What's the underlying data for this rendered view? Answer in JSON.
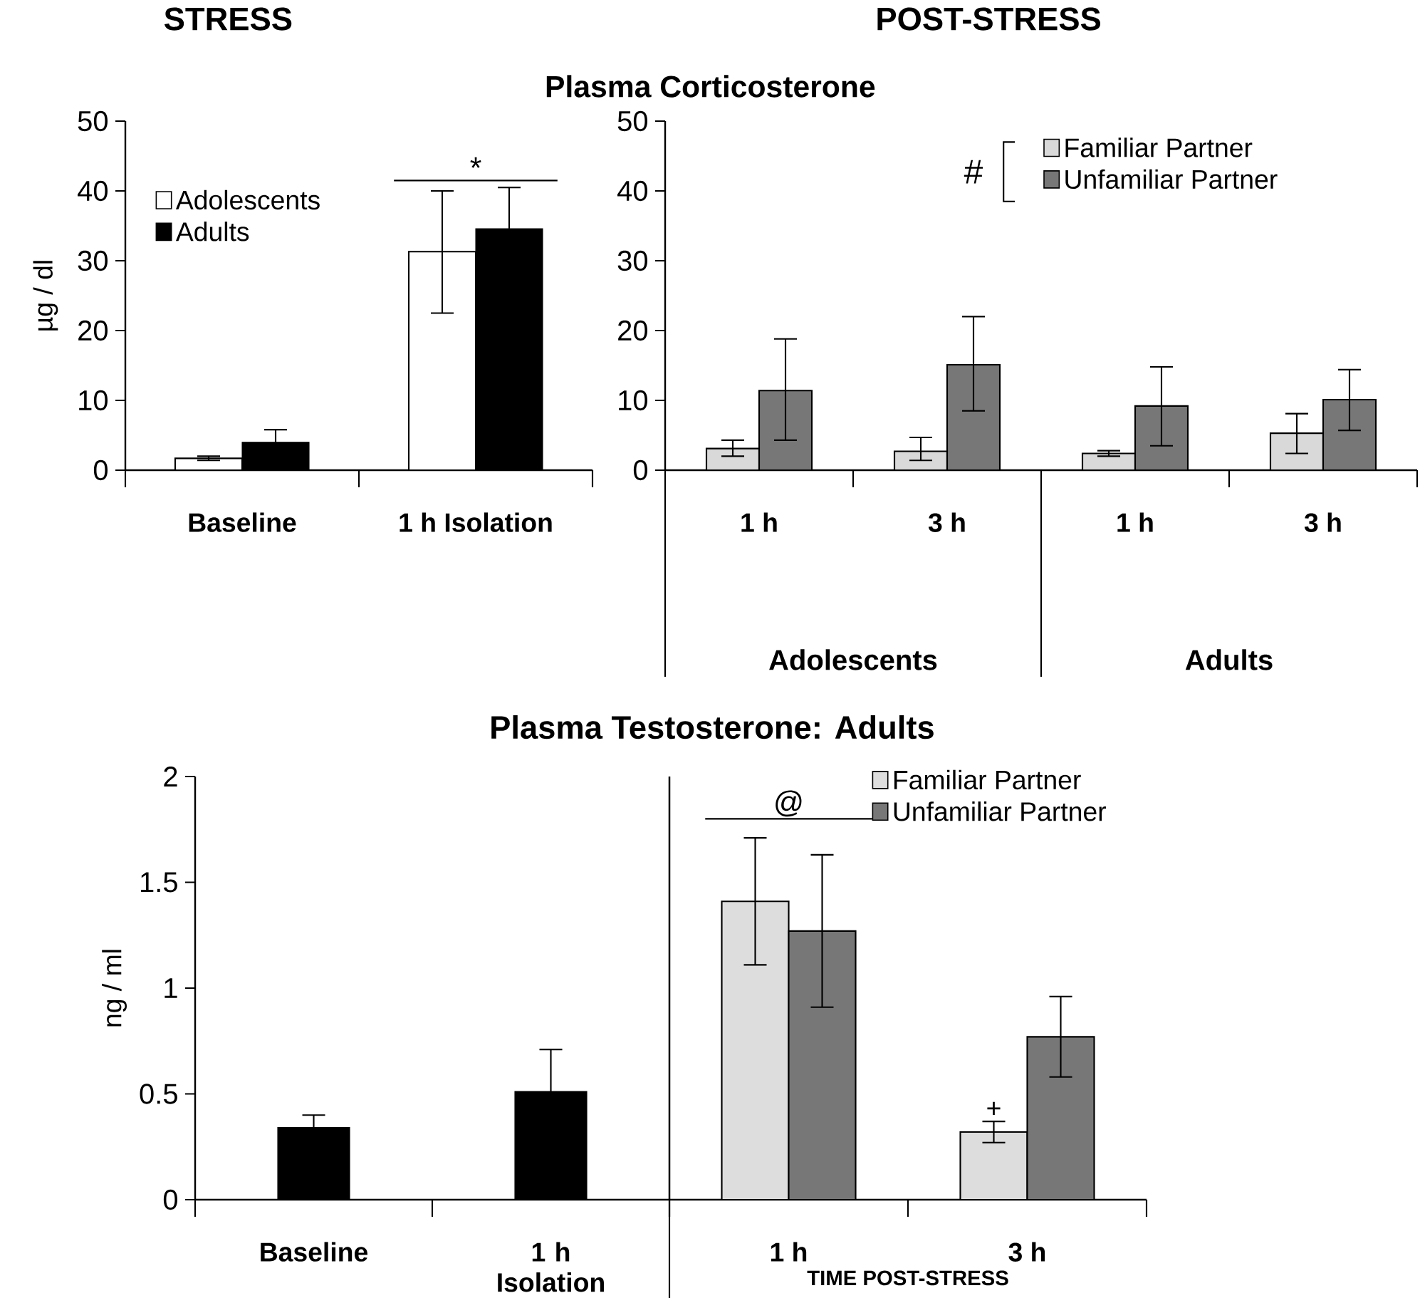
{
  "chart_data": [
    {
      "type": "bar",
      "title": "STRESS",
      "ylabel": "µg / dl",
      "categories": [
        "Baseline",
        "1 h Isolation"
      ],
      "series": [
        {
          "name": "Adolescents",
          "color": "#ffffff",
          "values": [
            1.7,
            31.3
          ],
          "errors": [
            0.3,
            [
              22.5,
              40.0
            ]
          ]
        },
        {
          "name": "Adults",
          "color": "#000000",
          "values": [
            4.0,
            34.6
          ],
          "errors": [
            1.8,
            5.9
          ]
        }
      ],
      "ylim": [
        0,
        50
      ],
      "yticks": [
        0,
        10,
        20,
        30,
        40,
        50
      ],
      "legend": "top left",
      "annotations": [
        "*"
      ]
    },
    {
      "type": "bar",
      "title": "POST-STRESS",
      "subtitle": "Plasma Corticosterone",
      "categories": [
        "1 h",
        "3 h",
        "1 h",
        "3 h"
      ],
      "series": [
        {
          "name": "Familiar Partner",
          "color": "#d9d9d9",
          "values": [
            3.1,
            2.7,
            2.4,
            5.3
          ],
          "errors": [
            [
              2.0,
              4.3
            ],
            [
              1.4,
              4.7
            ],
            0.4,
            [
              2.4,
              8.1
            ]
          ]
        },
        {
          "name": "Unfamiliar Partner",
          "color": "#777777",
          "values": [
            11.4,
            15.1,
            9.2,
            10.1
          ],
          "errors": [
            [
              4.3,
              18.8
            ],
            [
              8.5,
              22.0
            ],
            [
              3.5,
              14.8
            ],
            [
              5.7,
              14.4
            ]
          ]
        }
      ],
      "ylim": [
        0,
        50
      ],
      "yticks": [
        0,
        10,
        20,
        30,
        40,
        50
      ],
      "legend": "top right",
      "annotations": [
        "#",
        "Adolescents",
        "Adults"
      ]
    },
    {
      "type": "bar",
      "title": "Plasma Testosterone: Adults",
      "ylabel": "ng / ml",
      "categories": [
        "Baseline",
        "1 h Isolation"
      ],
      "values": [
        0.34,
        0.51
      ],
      "errors": [
        0.06,
        0.2
      ],
      "color": "#000000",
      "ylim": [
        0,
        2
      ],
      "yticks": [
        0,
        0.5,
        1,
        1.5,
        2
      ]
    },
    {
      "type": "bar",
      "xlabel": "TIME POST-STRESS",
      "categories": [
        "1 h",
        "3 h"
      ],
      "series": [
        {
          "name": "Familiar Partner",
          "color": "#dddddd",
          "values": [
            1.41,
            0.32
          ],
          "errors": [
            0.3,
            0.05
          ]
        },
        {
          "name": "Unfamiliar Partner",
          "color": "#777777",
          "values": [
            1.27,
            0.77
          ],
          "errors": [
            [
              0.91,
              1.63
            ],
            [
              0.58,
              0.96
            ]
          ]
        }
      ],
      "ylim": [
        0,
        2
      ],
      "tick_labels": "x",
      "legend": "top right",
      "annotations": [
        "@",
        "+"
      ]
    }
  ]
}
